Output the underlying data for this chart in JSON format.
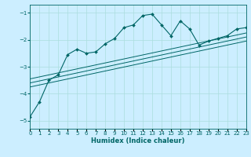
{
  "xlabel": "Humidex (Indice chaleur)",
  "bg_color": "#cceeff",
  "line_color": "#006666",
  "grid_color": "#aadddd",
  "x_main": [
    0,
    1,
    2,
    3,
    4,
    5,
    6,
    7,
    8,
    9,
    10,
    11,
    12,
    13,
    14,
    15,
    16,
    17,
    18,
    19,
    20,
    21,
    22,
    23
  ],
  "y_main": [
    -4.85,
    -4.3,
    -3.5,
    -3.3,
    -2.55,
    -2.35,
    -2.5,
    -2.45,
    -2.15,
    -1.95,
    -1.55,
    -1.45,
    -1.1,
    -1.05,
    -1.45,
    -1.85,
    -1.3,
    -1.6,
    -2.2,
    -2.05,
    -1.95,
    -1.85,
    -1.6,
    -1.55
  ],
  "trend_lines": [
    {
      "x": [
        0,
        23
      ],
      "y": [
        -3.75,
        -2.05
      ]
    },
    {
      "x": [
        0,
        23
      ],
      "y": [
        -3.6,
        -1.9
      ]
    },
    {
      "x": [
        0,
        23
      ],
      "y": [
        -3.45,
        -1.75
      ]
    }
  ],
  "xlim": [
    0,
    23
  ],
  "ylim": [
    -5.3,
    -0.7
  ],
  "yticks": [
    -5,
    -4,
    -3,
    -2,
    -1
  ],
  "xtick_labels": [
    "0",
    "1",
    "2",
    "3",
    "4",
    "5",
    "6",
    "7",
    "8",
    "9",
    "10",
    "11",
    "12",
    "13",
    "14",
    "15",
    "16",
    "17",
    "18",
    "19",
    "20",
    "21",
    "22",
    "23"
  ],
  "tick_fontsize": 5,
  "xlabel_fontsize": 6,
  "marker": "D",
  "markersize": 2.0,
  "linewidth": 0.8,
  "trend_linewidth": 0.7
}
